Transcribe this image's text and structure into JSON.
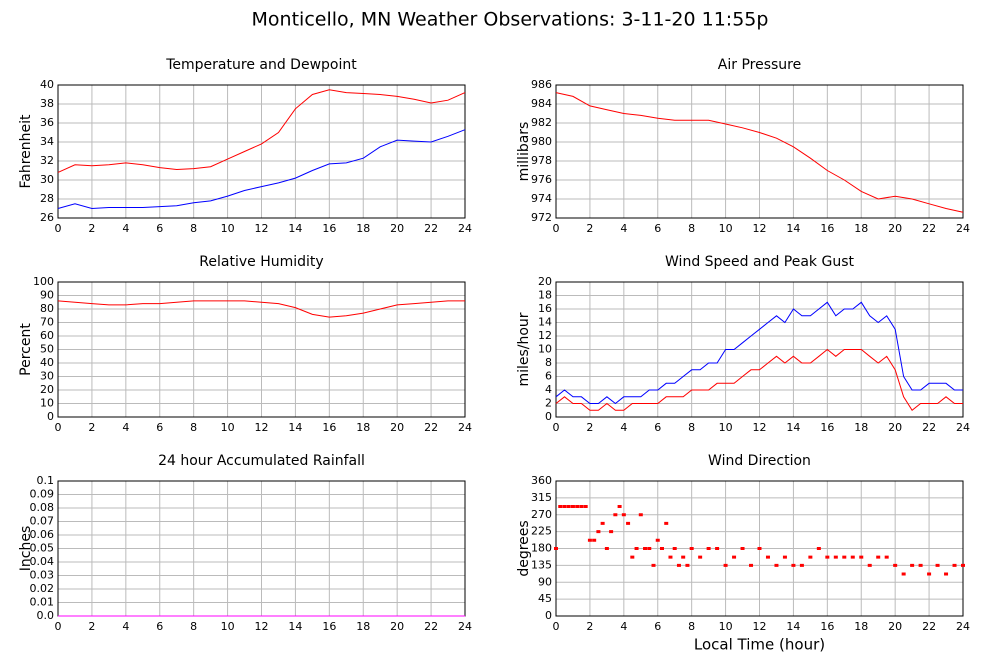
{
  "title": "Monticello, MN Weather Observations: 3-11-20 11:55p",
  "chart_data": [
    {
      "type": "line",
      "title": "Temperature and Dewpoint",
      "ylabel": "Fahrenheit",
      "x": [
        0,
        1,
        2,
        3,
        4,
        5,
        6,
        7,
        8,
        9,
        10,
        11,
        12,
        13,
        14,
        15,
        16,
        17,
        18,
        19,
        20,
        21,
        22,
        23,
        24
      ],
      "series": [
        {
          "color": "#ff0000",
          "values": [
            30.8,
            31.6,
            31.5,
            31.6,
            31.8,
            31.6,
            31.3,
            31.1,
            31.2,
            31.4,
            32.2,
            33.0,
            33.8,
            35.0,
            37.5,
            39.0,
            39.5,
            39.2,
            39.1,
            39.0,
            38.8,
            38.5,
            38.1,
            38.4,
            39.2
          ]
        },
        {
          "color": "#0000ff",
          "values": [
            27.0,
            27.5,
            27.0,
            27.1,
            27.1,
            27.1,
            27.2,
            27.3,
            27.6,
            27.8,
            28.3,
            28.9,
            29.3,
            29.7,
            30.2,
            31.0,
            31.7,
            31.8,
            32.3,
            33.5,
            34.2,
            34.1,
            34.0,
            34.6,
            35.3
          ]
        }
      ],
      "xlim": [
        0,
        24
      ],
      "xticks": [
        0,
        2,
        4,
        6,
        8,
        10,
        12,
        14,
        16,
        18,
        20,
        22,
        24
      ],
      "ylim": [
        26,
        40
      ],
      "yticks": [
        26,
        28,
        30,
        32,
        34,
        36,
        38,
        40
      ],
      "grid": true
    },
    {
      "type": "line",
      "title": "Air Pressure",
      "ylabel": "millibars",
      "x": [
        0,
        1,
        2,
        3,
        4,
        5,
        6,
        7,
        8,
        9,
        10,
        11,
        12,
        13,
        14,
        15,
        16,
        17,
        18,
        19,
        20,
        21,
        22,
        23,
        24
      ],
      "series": [
        {
          "color": "#ff0000",
          "values": [
            985.2,
            984.8,
            983.8,
            983.4,
            983.0,
            982.8,
            982.5,
            982.3,
            982.3,
            982.3,
            981.9,
            981.5,
            981.0,
            980.4,
            979.5,
            978.3,
            977.0,
            976.0,
            974.8,
            974.0,
            974.3,
            974.0,
            973.5,
            973.0,
            972.6
          ]
        }
      ],
      "xlim": [
        0,
        24
      ],
      "xticks": [
        0,
        2,
        4,
        6,
        8,
        10,
        12,
        14,
        16,
        18,
        20,
        22,
        24
      ],
      "ylim": [
        972,
        986
      ],
      "yticks": [
        972,
        974,
        976,
        978,
        980,
        982,
        984,
        986
      ],
      "grid": true
    },
    {
      "type": "line",
      "title": "Relative Humidity",
      "ylabel": "Percent",
      "x": [
        0,
        1,
        2,
        3,
        4,
        5,
        6,
        7,
        8,
        9,
        10,
        11,
        12,
        13,
        14,
        15,
        16,
        17,
        18,
        19,
        20,
        21,
        22,
        23,
        24
      ],
      "series": [
        {
          "color": "#ff0000",
          "values": [
            86,
            85,
            84,
            83,
            83,
            84,
            84,
            85,
            86,
            86,
            86,
            86,
            85,
            84,
            81,
            76,
            74,
            75,
            77,
            80,
            83,
            84,
            85,
            86,
            86
          ]
        }
      ],
      "xlim": [
        0,
        24
      ],
      "xticks": [
        0,
        2,
        4,
        6,
        8,
        10,
        12,
        14,
        16,
        18,
        20,
        22,
        24
      ],
      "ylim": [
        0,
        100
      ],
      "yticks": [
        0,
        10,
        20,
        30,
        40,
        50,
        60,
        70,
        80,
        90,
        100
      ],
      "grid": true
    },
    {
      "type": "line",
      "title": "Wind Speed and Peak Gust",
      "ylabel": "miles/hour",
      "x": [
        0,
        0.5,
        1,
        1.5,
        2,
        2.5,
        3,
        3.5,
        4,
        4.5,
        5,
        5.5,
        6,
        6.5,
        7,
        7.5,
        8,
        8.5,
        9,
        9.5,
        10,
        10.5,
        11,
        11.5,
        12,
        12.5,
        13,
        13.5,
        14,
        14.5,
        15,
        15.5,
        16,
        16.5,
        17,
        17.5,
        18,
        18.5,
        19,
        19.5,
        20,
        20.5,
        21,
        21.5,
        22,
        22.5,
        23,
        23.5,
        24
      ],
      "series": [
        {
          "color": "#ff0000",
          "values": [
            2,
            3,
            2,
            2,
            1,
            1,
            2,
            1,
            1,
            2,
            2,
            2,
            2,
            3,
            3,
            3,
            4,
            4,
            4,
            5,
            5,
            5,
            6,
            7,
            7,
            8,
            9,
            8,
            9,
            8,
            8,
            9,
            10,
            9,
            10,
            10,
            10,
            9,
            8,
            9,
            7,
            3,
            1,
            2,
            2,
            2,
            3,
            2,
            2
          ]
        },
        {
          "color": "#0000ff",
          "values": [
            3,
            4,
            3,
            3,
            2,
            2,
            3,
            2,
            3,
            3,
            3,
            4,
            4,
            5,
            5,
            6,
            7,
            7,
            8,
            8,
            10,
            10,
            11,
            12,
            13,
            14,
            15,
            14,
            16,
            15,
            15,
            16,
            17,
            15,
            16,
            16,
            17,
            15,
            14,
            15,
            13,
            6,
            4,
            4,
            5,
            5,
            5,
            4,
            4
          ]
        }
      ],
      "xlim": [
        0,
        24
      ],
      "xticks": [
        0,
        2,
        4,
        6,
        8,
        10,
        12,
        14,
        16,
        18,
        20,
        22,
        24
      ],
      "ylim": [
        0,
        20
      ],
      "yticks": [
        0,
        2,
        4,
        6,
        8,
        10,
        12,
        14,
        16,
        18,
        20
      ],
      "grid": true
    },
    {
      "type": "line",
      "title": "24 hour Accumulated Rainfall",
      "ylabel": "Inches",
      "x": [
        0,
        24
      ],
      "series": [
        {
          "color": "#ff00ff",
          "values": [
            0,
            0
          ]
        }
      ],
      "xlim": [
        0,
        24
      ],
      "xticks": [
        0,
        2,
        4,
        6,
        8,
        10,
        12,
        14,
        16,
        18,
        20,
        22,
        24
      ],
      "ylim": [
        0,
        0.1
      ],
      "yticks": [
        {
          "value": 0,
          "label": "0.0"
        },
        0.01,
        0.02,
        0.03,
        0.04,
        0.05,
        0.06,
        0.07,
        0.08,
        0.09,
        0.1
      ],
      "grid": true
    },
    {
      "type": "scatter",
      "title": "Wind Direction",
      "ylabel": "degrees",
      "xlabel": "Local Time (hour)",
      "x": [
        0,
        0.25,
        0.5,
        0.75,
        1,
        1.25,
        1.5,
        1.75,
        2,
        2.25,
        2.5,
        2.75,
        3,
        3.25,
        3.5,
        3.75,
        4,
        4.25,
        4.5,
        4.75,
        5,
        5.25,
        5.5,
        5.75,
        6,
        6.25,
        6.5,
        6.75,
        7,
        7.25,
        7.5,
        7.75,
        8,
        8.5,
        9,
        9.5,
        10,
        10.5,
        11,
        11.5,
        12,
        12.5,
        13,
        13.5,
        14,
        14.5,
        15,
        15.5,
        16,
        16.5,
        17,
        17.5,
        18,
        18.5,
        19,
        19.5,
        20,
        20.5,
        21,
        21.5,
        22,
        22.5,
        23,
        23.5,
        24
      ],
      "series": [
        {
          "color": "#ff0000",
          "values": [
            180,
            292,
            292,
            292,
            292,
            292,
            292,
            292,
            202,
            202,
            225,
            247,
            180,
            225,
            270,
            292,
            270,
            247,
            157,
            180,
            270,
            180,
            180,
            135,
            202,
            180,
            247,
            157,
            180,
            135,
            157,
            135,
            180,
            157,
            180,
            180,
            135,
            157,
            180,
            135,
            180,
            157,
            135,
            157,
            135,
            135,
            157,
            180,
            157,
            157,
            157,
            157,
            157,
            135,
            157,
            157,
            135,
            112,
            135,
            135,
            112,
            135,
            112,
            135,
            135
          ]
        }
      ],
      "xlim": [
        0,
        24
      ],
      "xticks": [
        0,
        2,
        4,
        6,
        8,
        10,
        12,
        14,
        16,
        18,
        20,
        22,
        24
      ],
      "ylim": [
        0,
        360
      ],
      "yticks": [
        0,
        45,
        90,
        135,
        180,
        225,
        270,
        315,
        360
      ],
      "grid": true
    }
  ]
}
